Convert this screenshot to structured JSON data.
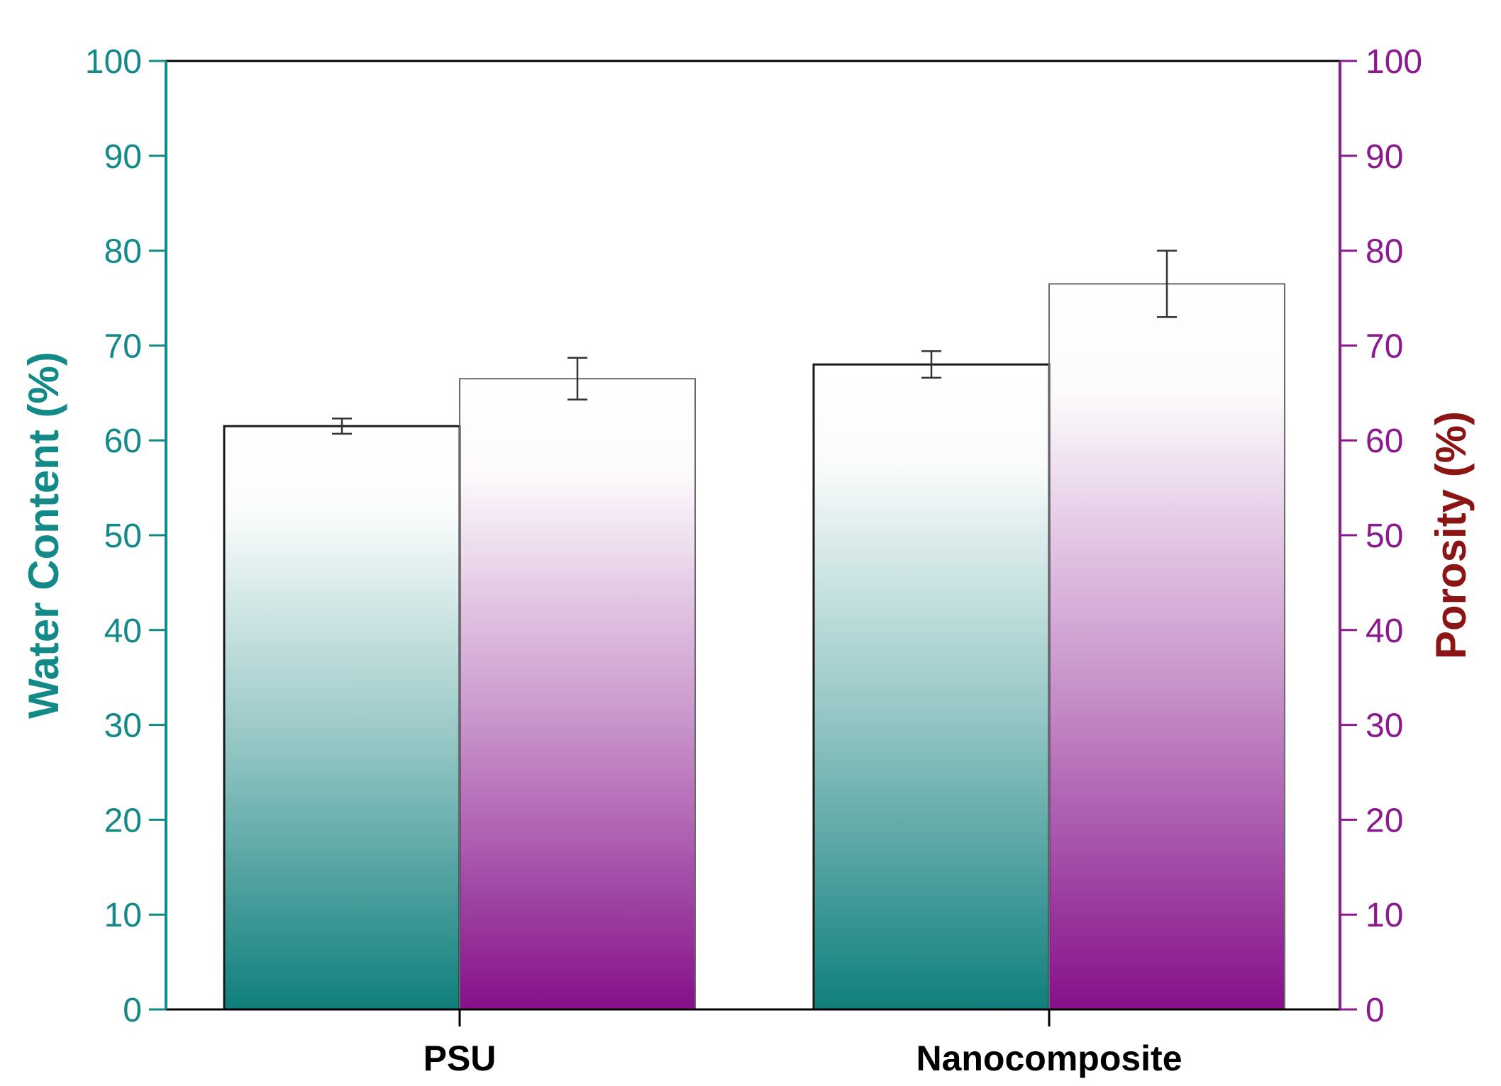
{
  "chart_data": {
    "type": "bar",
    "title": "",
    "xlabel": "",
    "categories": [
      "PSU",
      "Nanocomposite"
    ],
    "y_left": {
      "label": "Water Content (%)",
      "range": [
        0,
        100
      ],
      "ticks": [
        "0",
        "10",
        "20",
        "30",
        "40",
        "50",
        "60",
        "70",
        "80",
        "90",
        "100"
      ],
      "color": "#138a88"
    },
    "y_right": {
      "label": "Porosity (%)",
      "range": [
        0,
        100
      ],
      "ticks": [
        "0",
        "10",
        "20",
        "30",
        "40",
        "50",
        "60",
        "70",
        "80",
        "90",
        "100"
      ],
      "color": "#8c1a8f",
      "label_color": "#8b1414"
    },
    "series": [
      {
        "name": "Water Content",
        "axis": "left",
        "color": "#0f7f7c",
        "values": [
          61.5,
          68.0
        ],
        "errors": [
          0.8,
          1.4
        ]
      },
      {
        "name": "Porosity",
        "axis": "right",
        "color": "#85108a",
        "values": [
          66.5,
          76.5
        ],
        "errors": [
          2.2,
          3.5
        ]
      }
    ],
    "grid": false
  }
}
